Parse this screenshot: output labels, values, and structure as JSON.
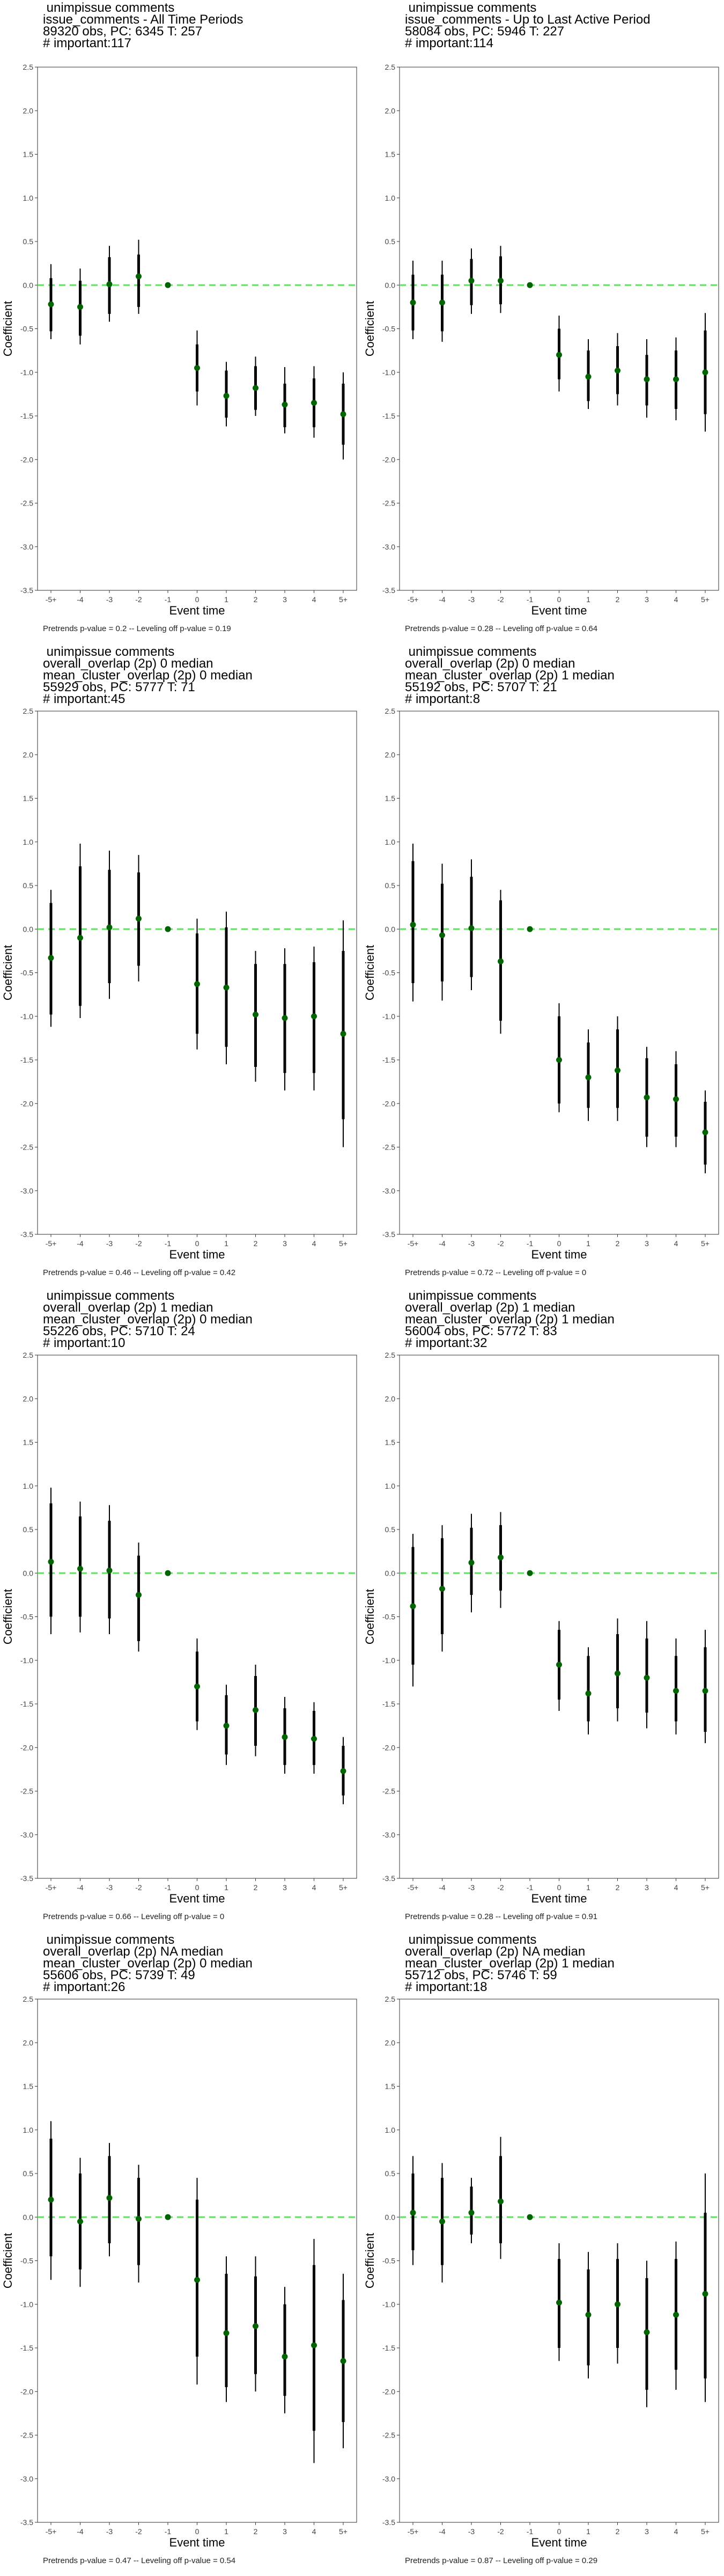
{
  "chart_data": [
    {
      "type": "scatter",
      "title_lines": [
        " unimpissue comments",
        "issue_comments - All Time Periods",
        "89320 obs, PC: 6345 T: 257",
        "# important:117"
      ],
      "xlabel": "Event time",
      "ylabel": "Coefficient",
      "categories": [
        "-5+",
        "-4",
        "-3",
        "-2",
        "-1",
        "0",
        "1",
        "2",
        "3",
        "4",
        "5+"
      ],
      "ylim": [
        -3.5,
        2.5
      ],
      "yticks": [
        "-3.5",
        "-3.0",
        "-2.5",
        "-2.0",
        "-1.5",
        "-1.0",
        "-0.5",
        "0.0",
        "0.5",
        "1.0",
        "1.5",
        "2.0",
        "2.5"
      ],
      "estimates": [
        -0.22,
        -0.25,
        0.01,
        0.1,
        0.0,
        -0.95,
        -1.27,
        -1.18,
        -1.37,
        -1.35,
        -1.48
      ],
      "ci95_low": [
        -0.62,
        -0.68,
        -0.42,
        -0.33,
        0.0,
        -1.38,
        -1.62,
        -1.5,
        -1.7,
        -1.75,
        -2.0
      ],
      "ci95_high": [
        0.24,
        0.19,
        0.45,
        0.52,
        0.0,
        -0.52,
        -0.88,
        -0.82,
        -0.94,
        -0.93,
        -1.0
      ],
      "ci90_low": [
        -0.53,
        -0.58,
        -0.33,
        -0.25,
        0.0,
        -1.22,
        -1.52,
        -1.43,
        -1.63,
        -1.63,
        -1.83
      ],
      "ci90_high": [
        0.08,
        0.05,
        0.32,
        0.35,
        0.0,
        -0.68,
        -0.98,
        -0.93,
        -1.13,
        -1.07,
        -1.13
      ],
      "footnote": "Pretrends p-value = 0.2 -- Leveling off p-value = 0.19"
    },
    {
      "type": "scatter",
      "title_lines": [
        " unimpissue comments",
        "issue_comments - Up to Last Active Period",
        "58084 obs, PC: 5946 T: 227",
        "# important:114"
      ],
      "xlabel": "Event time",
      "ylabel": "Coefficient",
      "categories": [
        "-5+",
        "-4",
        "-3",
        "-2",
        "-1",
        "0",
        "1",
        "2",
        "3",
        "4",
        "5+"
      ],
      "ylim": [
        -3.5,
        2.5
      ],
      "yticks": [
        "-3.5",
        "-3.0",
        "-2.5",
        "-2.0",
        "-1.5",
        "-1.0",
        "-0.5",
        "0.0",
        "0.5",
        "1.0",
        "1.5",
        "2.0",
        "2.5"
      ],
      "estimates": [
        -0.2,
        -0.2,
        0.05,
        0.05,
        0.0,
        -0.8,
        -1.05,
        -0.98,
        -1.08,
        -1.08,
        -1.0
      ],
      "ci95_low": [
        -0.62,
        -0.65,
        -0.33,
        -0.32,
        0.0,
        -1.22,
        -1.42,
        -1.38,
        -1.52,
        -1.55,
        -1.68
      ],
      "ci95_high": [
        0.28,
        0.28,
        0.42,
        0.45,
        0.0,
        -0.35,
        -0.62,
        -0.55,
        -0.62,
        -0.6,
        -0.32
      ],
      "ci90_low": [
        -0.52,
        -0.53,
        -0.23,
        -0.22,
        0.0,
        -1.08,
        -1.33,
        -1.25,
        -1.38,
        -1.42,
        -1.48
      ],
      "ci90_high": [
        0.12,
        0.12,
        0.3,
        0.33,
        0.0,
        -0.5,
        -0.75,
        -0.7,
        -0.8,
        -0.75,
        -0.52
      ],
      "footnote": "Pretrends p-value = 0.28 -- Leveling off p-value = 0.64"
    },
    {
      "type": "scatter",
      "title_lines": [
        " unimpissue comments",
        "overall_overlap (2p) 0 median",
        "mean_cluster_overlap (2p) 0 median",
        "55929 obs, PC: 5777 T: 71",
        "# important:45"
      ],
      "xlabel": "Event time",
      "ylabel": "Coefficient",
      "categories": [
        "-5+",
        "-4",
        "-3",
        "-2",
        "-1",
        "0",
        "1",
        "2",
        "3",
        "4",
        "5+"
      ],
      "ylim": [
        -3.5,
        2.5
      ],
      "yticks": [
        "-3.5",
        "-3.0",
        "-2.5",
        "-2.0",
        "-1.5",
        "-1.0",
        "-0.5",
        "0.0",
        "0.5",
        "1.0",
        "1.5",
        "2.0",
        "2.5"
      ],
      "estimates": [
        -0.33,
        -0.1,
        0.02,
        0.12,
        0.0,
        -0.63,
        -0.67,
        -0.98,
        -1.02,
        -1.0,
        -1.2
      ],
      "ci95_low": [
        -1.12,
        -1.02,
        -0.8,
        -0.6,
        0.0,
        -1.38,
        -1.55,
        -1.75,
        -1.85,
        -1.85,
        -2.5
      ],
      "ci95_high": [
        0.45,
        0.98,
        0.9,
        0.85,
        0.0,
        0.12,
        0.2,
        -0.25,
        -0.22,
        -0.2,
        0.1
      ],
      "ci90_low": [
        -0.98,
        -0.88,
        -0.62,
        -0.42,
        0.0,
        -1.2,
        -1.35,
        -1.58,
        -1.65,
        -1.65,
        -2.18
      ],
      "ci90_high": [
        0.3,
        0.72,
        0.68,
        0.65,
        0.0,
        -0.05,
        0.02,
        -0.4,
        -0.4,
        -0.38,
        -0.25
      ],
      "footnote": "Pretrends p-value = 0.46 -- Leveling off p-value = 0.42"
    },
    {
      "type": "scatter",
      "title_lines": [
        " unimpissue comments",
        "overall_overlap (2p) 0 median",
        "mean_cluster_overlap (2p) 1 median",
        "55192 obs, PC: 5707 T: 21",
        "# important:8"
      ],
      "xlabel": "Event time",
      "ylabel": "Coefficient",
      "categories": [
        "-5+",
        "-4",
        "-3",
        "-2",
        "-1",
        "0",
        "1",
        "2",
        "3",
        "4",
        "5+"
      ],
      "ylim": [
        -3.5,
        2.5
      ],
      "yticks": [
        "-3.5",
        "-3.0",
        "-2.5",
        "-2.0",
        "-1.5",
        "-1.0",
        "-0.5",
        "0.0",
        "0.5",
        "1.0",
        "1.5",
        "2.0",
        "2.5"
      ],
      "estimates": [
        0.05,
        -0.07,
        0.01,
        -0.37,
        0.0,
        -1.5,
        -1.7,
        -1.62,
        -1.93,
        -1.95,
        -2.33
      ],
      "ci95_low": [
        -0.83,
        -0.82,
        -0.7,
        -1.2,
        0.0,
        -2.1,
        -2.2,
        -2.2,
        -2.5,
        -2.5,
        -2.8
      ],
      "ci95_high": [
        0.98,
        0.75,
        0.8,
        0.45,
        0.0,
        -0.85,
        -1.15,
        -1.0,
        -1.35,
        -1.4,
        -1.85
      ],
      "ci90_low": [
        -0.62,
        -0.6,
        -0.55,
        -1.05,
        0.0,
        -2.0,
        -2.05,
        -2.05,
        -2.38,
        -2.38,
        -2.7
      ],
      "ci90_high": [
        0.78,
        0.52,
        0.6,
        0.33,
        0.0,
        -1.0,
        -1.3,
        -1.15,
        -1.48,
        -1.55,
        -1.98
      ],
      "footnote": "Pretrends p-value = 0.72 -- Leveling off p-value = 0"
    },
    {
      "type": "scatter",
      "title_lines": [
        " unimpissue comments",
        "overall_overlap (2p) 1 median",
        "mean_cluster_overlap (2p) 0 median",
        "55226 obs, PC: 5710 T: 24",
        "# important:10"
      ],
      "xlabel": "Event time",
      "ylabel": "Coefficient",
      "categories": [
        "-5+",
        "-4",
        "-3",
        "-2",
        "-1",
        "0",
        "1",
        "2",
        "3",
        "4",
        "5+"
      ],
      "ylim": [
        -3.5,
        2.5
      ],
      "yticks": [
        "-3.5",
        "-3.0",
        "-2.5",
        "-2.0",
        "-1.5",
        "-1.0",
        "-0.5",
        "0.0",
        "0.5",
        "1.0",
        "1.5",
        "2.0",
        "2.5"
      ],
      "estimates": [
        0.13,
        0.05,
        0.03,
        -0.25,
        0.0,
        -1.3,
        -1.75,
        -1.57,
        -1.88,
        -1.9,
        -2.27
      ],
      "ci95_low": [
        -0.7,
        -0.68,
        -0.7,
        -0.9,
        0.0,
        -1.8,
        -2.2,
        -2.1,
        -2.3,
        -2.3,
        -2.65
      ],
      "ci95_high": [
        0.98,
        0.82,
        0.78,
        0.35,
        0.0,
        -0.75,
        -1.28,
        -1.05,
        -1.42,
        -1.48,
        -1.88
      ],
      "ci90_low": [
        -0.5,
        -0.5,
        -0.52,
        -0.78,
        0.0,
        -1.7,
        -2.08,
        -1.98,
        -2.2,
        -2.2,
        -2.55
      ],
      "ci90_high": [
        0.8,
        0.65,
        0.6,
        0.2,
        0.0,
        -0.9,
        -1.4,
        -1.18,
        -1.55,
        -1.58,
        -1.98
      ],
      "footnote": "Pretrends p-value = 0.66 -- Leveling off p-value = 0"
    },
    {
      "type": "scatter",
      "title_lines": [
        " unimpissue comments",
        "overall_overlap (2p) 1 median",
        "mean_cluster_overlap (2p) 1 median",
        "56004 obs, PC: 5772 T: 83",
        "# important:32"
      ],
      "xlabel": "Event time",
      "ylabel": "Coefficient",
      "categories": [
        "-5+",
        "-4",
        "-3",
        "-2",
        "-1",
        "0",
        "1",
        "2",
        "3",
        "4",
        "5+"
      ],
      "ylim": [
        -3.5,
        2.5
      ],
      "yticks": [
        "-3.5",
        "-3.0",
        "-2.5",
        "-2.0",
        "-1.5",
        "-1.0",
        "-0.5",
        "0.0",
        "0.5",
        "1.0",
        "1.5",
        "2.0",
        "2.5"
      ],
      "estimates": [
        -0.38,
        -0.18,
        0.12,
        0.18,
        0.0,
        -1.05,
        -1.38,
        -1.15,
        -1.2,
        -1.35,
        -1.35
      ],
      "ci95_low": [
        -1.3,
        -0.9,
        -0.45,
        -0.4,
        0.0,
        -1.58,
        -1.85,
        -1.7,
        -1.78,
        -1.85,
        -1.95
      ],
      "ci95_high": [
        0.45,
        0.55,
        0.68,
        0.7,
        0.0,
        -0.55,
        -0.85,
        -0.52,
        -0.55,
        -0.75,
        -0.65
      ],
      "ci90_low": [
        -1.05,
        -0.7,
        -0.25,
        -0.2,
        0.0,
        -1.45,
        -1.7,
        -1.55,
        -1.6,
        -1.7,
        -1.82
      ],
      "ci90_high": [
        0.3,
        0.4,
        0.52,
        0.55,
        0.0,
        -0.65,
        -0.95,
        -0.7,
        -0.75,
        -0.95,
        -0.85
      ],
      "footnote": "Pretrends p-value = 0.28 -- Leveling off p-value = 0.91"
    },
    {
      "type": "scatter",
      "title_lines": [
        " unimpissue comments",
        "overall_overlap (2p) NA median",
        "mean_cluster_overlap (2p) 0 median",
        "55606 obs, PC: 5739 T: 49",
        "# important:26"
      ],
      "xlabel": "Event time",
      "ylabel": "Coefficient",
      "categories": [
        "-5+",
        "-4",
        "-3",
        "-2",
        "-1",
        "0",
        "1",
        "2",
        "3",
        "4",
        "5+"
      ],
      "ylim": [
        -3.5,
        2.5
      ],
      "yticks": [
        "-3.5",
        "-3.0",
        "-2.5",
        "-2.0",
        "-1.5",
        "-1.0",
        "-0.5",
        "0.0",
        "0.5",
        "1.0",
        "1.5",
        "2.0",
        "2.5"
      ],
      "estimates": [
        0.2,
        -0.05,
        0.22,
        -0.02,
        0.0,
        -0.72,
        -1.33,
        -1.25,
        -1.6,
        -1.47,
        -1.65
      ],
      "ci95_low": [
        -0.72,
        -0.8,
        -0.45,
        -0.75,
        0.0,
        -1.92,
        -2.12,
        -2.0,
        -2.25,
        -2.82,
        -2.65
      ],
      "ci95_high": [
        1.1,
        0.68,
        0.85,
        0.6,
        0.0,
        0.45,
        -0.45,
        -0.45,
        -0.8,
        -0.25,
        -0.65
      ],
      "ci90_low": [
        -0.45,
        -0.6,
        -0.3,
        -0.55,
        0.0,
        -1.6,
        -1.95,
        -1.8,
        -2.05,
        -2.45,
        -2.35
      ],
      "ci90_high": [
        0.9,
        0.5,
        0.7,
        0.45,
        0.0,
        0.2,
        -0.65,
        -0.68,
        -1.0,
        -0.55,
        -0.95
      ],
      "footnote": "Pretrends p-value = 0.47 -- Leveling off p-value = 0.54"
    },
    {
      "type": "scatter",
      "title_lines": [
        " unimpissue comments",
        "overall_overlap (2p) NA median",
        "mean_cluster_overlap (2p) 1 median",
        "55712 obs, PC: 5746 T: 59",
        "# important:18"
      ],
      "xlabel": "Event time",
      "ylabel": "Coefficient",
      "categories": [
        "-5+",
        "-4",
        "-3",
        "-2",
        "-1",
        "0",
        "1",
        "2",
        "3",
        "4",
        "5+"
      ],
      "ylim": [
        -3.5,
        2.5
      ],
      "yticks": [
        "-3.5",
        "-3.0",
        "-2.5",
        "-2.0",
        "-1.5",
        "-1.0",
        "-0.5",
        "0.0",
        "0.5",
        "1.0",
        "1.5",
        "2.0",
        "2.5"
      ],
      "estimates": [
        0.05,
        -0.05,
        0.05,
        0.18,
        0.0,
        -0.98,
        -1.12,
        -1.0,
        -1.32,
        -1.12,
        -0.88
      ],
      "ci95_low": [
        -0.55,
        -0.75,
        -0.3,
        -0.48,
        0.0,
        -1.65,
        -1.85,
        -1.68,
        -2.18,
        -1.98,
        -2.12
      ],
      "ci95_high": [
        0.7,
        0.62,
        0.45,
        0.92,
        0.0,
        -0.3,
        -0.4,
        -0.3,
        -0.5,
        -0.28,
        0.5
      ],
      "ci90_low": [
        -0.38,
        -0.55,
        -0.2,
        -0.3,
        0.0,
        -1.5,
        -1.7,
        -1.5,
        -1.98,
        -1.75,
        -1.85
      ],
      "ci90_high": [
        0.5,
        0.45,
        0.35,
        0.7,
        0.0,
        -0.48,
        -0.6,
        -0.48,
        -0.7,
        -0.48,
        0.05
      ],
      "footnote": "Pretrends p-value = 0.87 -- Leveling off p-value = 0.29"
    }
  ],
  "colors": {
    "point": "#006400",
    "reference_line": "#66dd66",
    "interval": "#000000",
    "frame": "#333333"
  }
}
